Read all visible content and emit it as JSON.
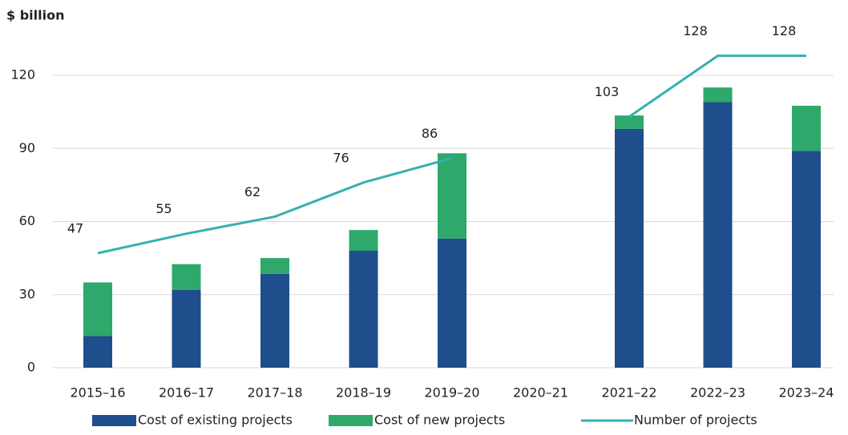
{
  "chart_data": {
    "type": "bar",
    "stacked": true,
    "y_label": "$ billion",
    "categories": [
      "2015–16",
      "2016–17",
      "2017–18",
      "2018–19",
      "2019–20",
      "2020–21",
      "2021–22",
      "2022–23",
      "2023–24"
    ],
    "series": [
      {
        "name": "Cost of existing projects",
        "color": "#1f4e8c",
        "values": [
          13,
          32,
          38.5,
          48,
          53,
          null,
          98,
          109,
          89
        ]
      },
      {
        "name": "Cost of new projects",
        "color": "#2ea86b",
        "values": [
          22,
          10.5,
          6.5,
          8.5,
          35,
          null,
          5.5,
          6,
          18.5
        ]
      },
      {
        "name": "Number of projects",
        "type": "line",
        "color": "#36b0b0",
        "values": [
          47,
          55,
          62,
          76,
          86,
          null,
          103,
          128,
          128
        ]
      }
    ],
    "ylim": [
      0,
      120
    ],
    "yticks": [
      0,
      30,
      60,
      90,
      120
    ],
    "grid": true,
    "legend": "bottom"
  }
}
